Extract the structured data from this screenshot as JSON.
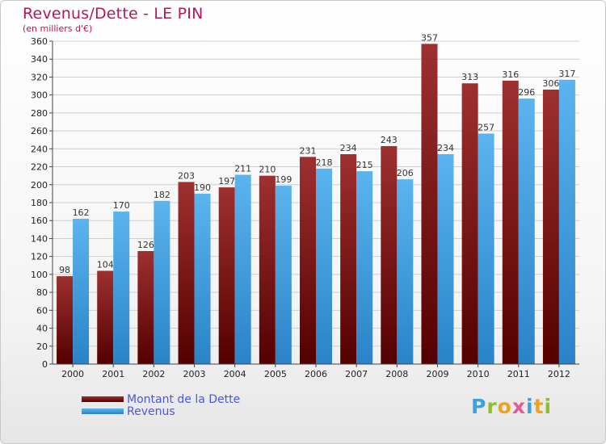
{
  "header": {
    "title": "Revenus/Dette - LE PIN",
    "subtitle": "(en milliers d'€)"
  },
  "chart_data": {
    "type": "bar",
    "categories": [
      "2000",
      "2001",
      "2002",
      "2003",
      "2004",
      "2005",
      "2006",
      "2007",
      "2008",
      "2009",
      "2010",
      "2011",
      "2012"
    ],
    "series": [
      {
        "name": "Montant de la Dette",
        "color": "#7a1a1a",
        "values": [
          98,
          104,
          126,
          203,
          197,
          210,
          231,
          234,
          243,
          357,
          313,
          316,
          306
        ]
      },
      {
        "name": "Revenus",
        "color": "#3d9ee0",
        "values": [
          162,
          170,
          182,
          190,
          211,
          199,
          218,
          215,
          206,
          234,
          257,
          296,
          317
        ]
      }
    ],
    "ylim": [
      0,
      360
    ],
    "yticks": [
      0,
      20,
      40,
      60,
      80,
      100,
      120,
      140,
      160,
      180,
      200,
      220,
      240,
      260,
      280,
      300,
      320,
      340,
      360
    ],
    "grid": "horizontal",
    "legend": "bottom-left"
  },
  "legend": {
    "items": [
      {
        "label": "Montant de la Dette",
        "color": "#7a1a1a"
      },
      {
        "label": "Revenus",
        "color": "#3d9ee0"
      }
    ]
  },
  "logo": {
    "text": "Proxiti"
  }
}
